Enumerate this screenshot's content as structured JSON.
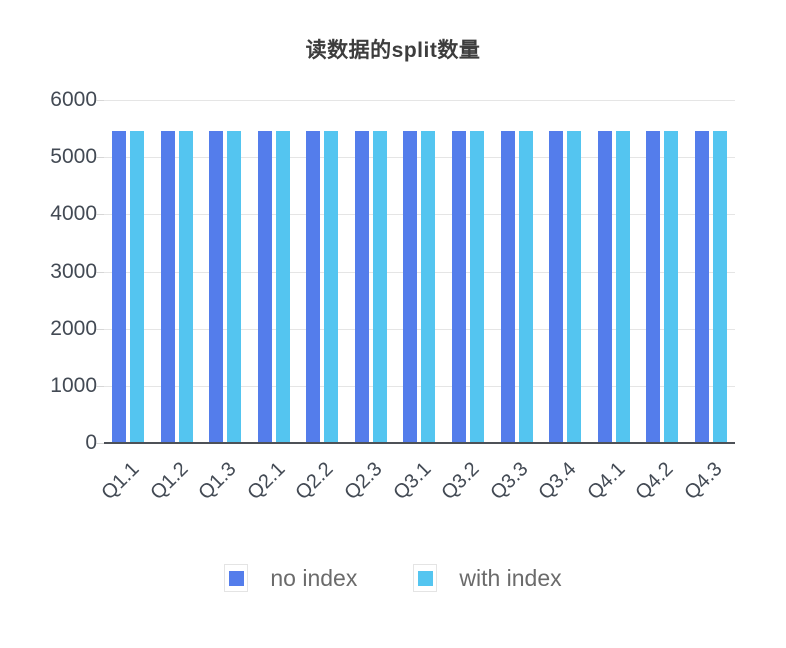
{
  "chart_data": {
    "type": "bar",
    "title": "读数据的split数量",
    "categories": [
      "Q1.1",
      "Q1.2",
      "Q1.3",
      "Q2.1",
      "Q2.2",
      "Q2.3",
      "Q3.1",
      "Q3.2",
      "Q3.3",
      "Q3.4",
      "Q4.1",
      "Q4.2",
      "Q4.3"
    ],
    "series": [
      {
        "name": "no index",
        "color": "#547DEB",
        "values": [
          5460,
          5460,
          5460,
          5460,
          5460,
          5460,
          5460,
          5460,
          5460,
          5460,
          5460,
          5460,
          5460
        ]
      },
      {
        "name": "with index",
        "color": "#54C5F0",
        "values": [
          5460,
          5460,
          5460,
          5460,
          5460,
          5460,
          5460,
          5460,
          5460,
          5460,
          5460,
          5460,
          5460
        ]
      }
    ],
    "xlabel": "",
    "ylabel": "",
    "ylim": [
      0,
      6000
    ],
    "yticks": [
      0,
      1000,
      2000,
      3000,
      4000,
      5000,
      6000
    ],
    "grid": "horizontal",
    "legend_position": "bottom",
    "x_tick_rotation": -45
  }
}
